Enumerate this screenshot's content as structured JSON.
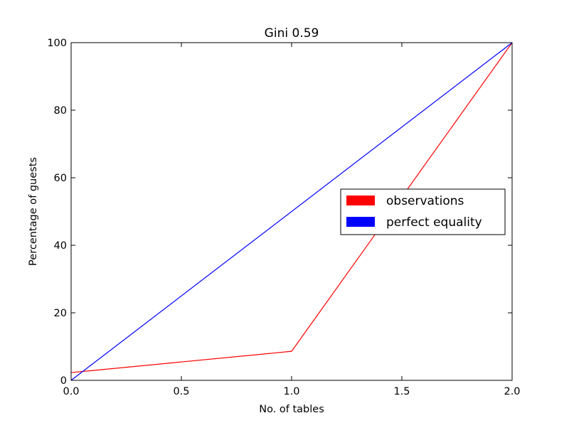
{
  "chart_data": {
    "type": "line",
    "title": "Gini 0.59",
    "xlabel": "No. of tables",
    "ylabel": "Percentage of guests",
    "xlim": [
      0.0,
      2.0
    ],
    "ylim": [
      0,
      100
    ],
    "xticks": [
      0.0,
      0.5,
      1.0,
      1.5,
      2.0
    ],
    "xtick_labels": [
      "0.0",
      "0.5",
      "1.0",
      "1.5",
      "2.0"
    ],
    "yticks": [
      0,
      20,
      40,
      60,
      80,
      100
    ],
    "ytick_labels": [
      "0",
      "20",
      "40",
      "60",
      "80",
      "100"
    ],
    "grid": false,
    "legend_position": "center-right",
    "series": [
      {
        "name": "observations",
        "color": "#ff0000",
        "x": [
          0.0,
          1.0,
          2.0
        ],
        "y": [
          2.3,
          8.6,
          100
        ]
      },
      {
        "name": "perfect equality",
        "color": "#0000ff",
        "x": [
          0.0,
          2.0
        ],
        "y": [
          0,
          100
        ]
      }
    ]
  }
}
